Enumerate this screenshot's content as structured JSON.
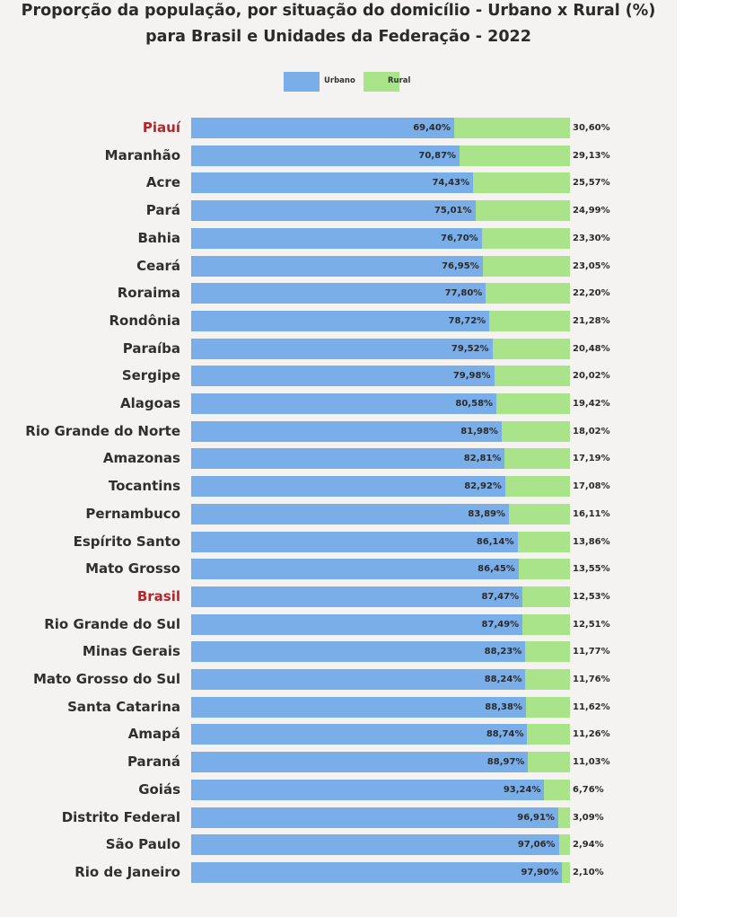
{
  "chart_data": {
    "type": "bar",
    "orientation": "horizontal",
    "stacked": true,
    "title": "Proporção da população, por situação do domicílio - Urbano x Rural (%)",
    "subtitle": "para Brasil e Unidades da Federação - 2022",
    "legend_position": "top-center",
    "xlim": [
      0,
      100
    ],
    "categories": [
      "Piauí",
      "Maranhão",
      "Acre",
      "Pará",
      "Bahia",
      "Ceará",
      "Roraima",
      "Rondônia",
      "Paraíba",
      "Sergipe",
      "Alagoas",
      "Rio Grande do Norte",
      "Amazonas",
      "Tocantins",
      "Pernambuco",
      "Espírito Santo",
      "Mato Grosso",
      "Brasil",
      "Rio Grande do Sul",
      "Minas Gerais",
      "Mato Grosso do Sul",
      "Santa Catarina",
      "Amapá",
      "Paraná",
      "Goiás",
      "Distrito Federal",
      "São Paulo",
      "Rio de Janeiro"
    ],
    "highlighted": [
      "Piauí",
      "Brasil"
    ],
    "series": [
      {
        "name": "Urbano",
        "color": "#7aaee8",
        "values": [
          69.4,
          70.87,
          74.43,
          75.01,
          76.7,
          76.95,
          77.8,
          78.72,
          79.52,
          79.98,
          80.58,
          81.98,
          82.81,
          82.92,
          83.89,
          86.14,
          86.45,
          87.47,
          87.49,
          88.23,
          88.24,
          88.38,
          88.74,
          88.97,
          93.24,
          96.91,
          97.06,
          97.9
        ],
        "labels": [
          "69,40%",
          "70,87%",
          "74,43%",
          "75,01%",
          "76,70%",
          "76,95%",
          "77,80%",
          "78,72%",
          "79,52%",
          "79,98%",
          "80,58%",
          "81,98%",
          "82,81%",
          "82,92%",
          "83,89%",
          "86,14%",
          "86,45%",
          "87,47%",
          "87,49%",
          "88,23%",
          "88,24%",
          "88,38%",
          "88,74%",
          "88,97%",
          "93,24%",
          "96,91%",
          "97,06%",
          "97,90%"
        ]
      },
      {
        "name": "Rural",
        "color": "#a9e48b",
        "values": [
          30.6,
          29.13,
          25.57,
          24.99,
          23.3,
          23.05,
          22.2,
          21.28,
          20.48,
          20.02,
          19.42,
          18.02,
          17.19,
          17.08,
          16.11,
          13.86,
          13.55,
          12.53,
          12.51,
          11.77,
          11.76,
          11.62,
          11.26,
          11.03,
          6.76,
          3.09,
          2.94,
          2.1
        ],
        "labels": [
          "30,60%",
          "29,13%",
          "25,57%",
          "24,99%",
          "23,30%",
          "23,05%",
          "22,20%",
          "21,28%",
          "20,48%",
          "20,02%",
          "19,42%",
          "18,02%",
          "17,19%",
          "17,08%",
          "16,11%",
          "13,86%",
          "13,55%",
          "12,53%",
          "12,51%",
          "11,77%",
          "11,76%",
          "11,62%",
          "11,26%",
          "11,03%",
          "6,76%",
          "3,09%",
          "2,94%",
          "2,10%"
        ]
      }
    ]
  }
}
